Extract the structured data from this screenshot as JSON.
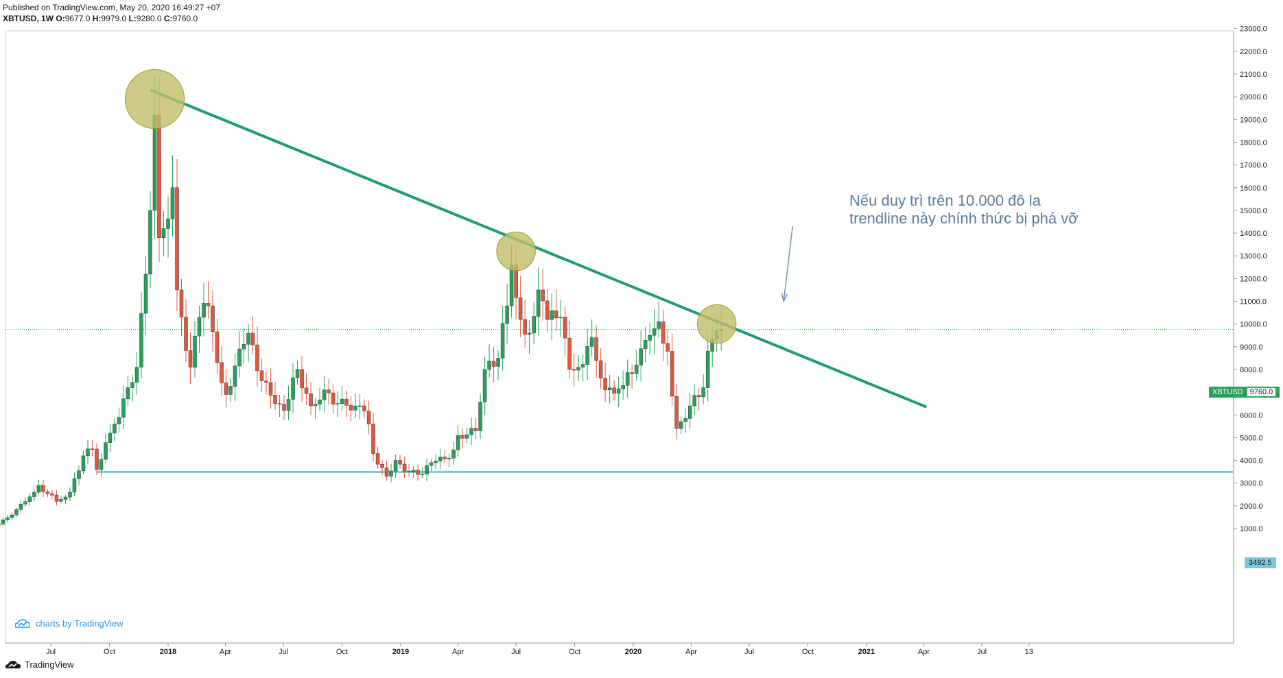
{
  "header": {
    "published": "Published on TradingView.com, May 20, 2020 16:49:27 +07",
    "symbol": "XBTUSD, 1W",
    "o_key": "O:",
    "o_val": "9677.0",
    "h_key": "H:",
    "h_val": "9979.0",
    "l_key": "L:",
    "l_val": "9280.0",
    "c_key": "C:",
    "c_val": "9760.0"
  },
  "annotation": {
    "line1": "Nếu duy trì trên 10.000 đô la",
    "line2": "trendline này chính thức bị phá vỡ"
  },
  "badges": {
    "last_symbol": "XBTUSD",
    "last_price": "9760.0",
    "support_level": "3492.5"
  },
  "watermark": "charts by TradingView",
  "footer": "TradingView",
  "colors": {
    "up": "#28a25a",
    "down": "#e0593c",
    "trendline": "#1f9a72",
    "support": "#7ec9d9",
    "highlight_fill": "#c2bd6a",
    "highlight_stroke": "#9c9a2a",
    "annotation": "#5b7a99",
    "arrow": "#6f8fb6"
  },
  "chart_data": {
    "type": "candlestick",
    "timeframe": "1W",
    "ylim": [
      0,
      23000
    ],
    "y_ticks": [
      1000,
      2000,
      3000,
      4000,
      5000,
      6000,
      7000,
      8000,
      9000,
      10000,
      11000,
      12000,
      13000,
      14000,
      15000,
      16000,
      17000,
      18000,
      19000,
      20000,
      21000,
      22000,
      23000
    ],
    "y_tick_labels": [
      "1000.0",
      "2000.0",
      "3000.0",
      "4000.0",
      "5000.0",
      "6000.0",
      "7000.0",
      "8000.0",
      "9000.0",
      "10000.0",
      "11000.0",
      "12000.0",
      "13000.0",
      "14000.0",
      "15000.0",
      "16000.0",
      "17000.0",
      "18000.0",
      "19000.0",
      "20000.0",
      "21000.0",
      "22000.0",
      "23000.0"
    ],
    "x_ticks": [
      {
        "label": "Jul",
        "date": "2017-07-01",
        "bold": false
      },
      {
        "label": "Oct",
        "date": "2017-10-01",
        "bold": false
      },
      {
        "label": "2018",
        "date": "2018-01-01",
        "bold": true
      },
      {
        "label": "Apr",
        "date": "2018-04-01",
        "bold": false
      },
      {
        "label": "Jul",
        "date": "2018-07-01",
        "bold": false
      },
      {
        "label": "Oct",
        "date": "2018-10-01",
        "bold": false
      },
      {
        "label": "2019",
        "date": "2019-01-01",
        "bold": true
      },
      {
        "label": "Apr",
        "date": "2019-04-01",
        "bold": false
      },
      {
        "label": "Jul",
        "date": "2019-07-01",
        "bold": false
      },
      {
        "label": "Oct",
        "date": "2019-10-01",
        "bold": false
      },
      {
        "label": "2020",
        "date": "2020-01-01",
        "bold": true
      },
      {
        "label": "Apr",
        "date": "2020-04-01",
        "bold": false
      },
      {
        "label": "Jul",
        "date": "2020-07-01",
        "bold": false
      },
      {
        "label": "Oct",
        "date": "2020-10-01",
        "bold": false
      },
      {
        "label": "2021",
        "date": "2021-01-01",
        "bold": true
      },
      {
        "label": "Apr",
        "date": "2021-04-01",
        "bold": false
      },
      {
        "label": "Jul",
        "date": "2021-07-01",
        "bold": false
      },
      {
        "label": "13",
        "date": "2021-09-13",
        "bold": false
      }
    ],
    "first_candle_week": "2017-04-10",
    "close_anchors": [
      [
        "2017-04-10",
        1200
      ],
      [
        "2017-05-01",
        1600
      ],
      [
        "2017-05-29",
        2400
      ],
      [
        "2017-06-12",
        2900
      ],
      [
        "2017-07-10",
        2200
      ],
      [
        "2017-07-31",
        2600
      ],
      [
        "2017-08-21",
        4200
      ],
      [
        "2017-09-04",
        4500
      ],
      [
        "2017-09-11",
        3600
      ],
      [
        "2017-10-09",
        5600
      ],
      [
        "2017-10-30",
        7200
      ],
      [
        "2017-11-13",
        8100
      ],
      [
        "2017-12-04",
        15000
      ],
      [
        "2017-12-11",
        19200
      ],
      [
        "2017-12-18",
        13800
      ],
      [
        "2017-12-25",
        14200
      ],
      [
        "2018-01-08",
        16000
      ],
      [
        "2018-01-15",
        11500
      ],
      [
        "2018-02-05",
        8100
      ],
      [
        "2018-02-19",
        10300
      ],
      [
        "2018-03-05",
        10800
      ],
      [
        "2018-03-19",
        8300
      ],
      [
        "2018-04-02",
        6900
      ],
      [
        "2018-04-23",
        8900
      ],
      [
        "2018-05-07",
        9600
      ],
      [
        "2018-05-28",
        7500
      ],
      [
        "2018-06-18",
        6500
      ],
      [
        "2018-07-02",
        6200
      ],
      [
        "2018-07-23",
        8000
      ],
      [
        "2018-08-13",
        6400
      ],
      [
        "2018-09-03",
        7100
      ],
      [
        "2018-09-24",
        6500
      ],
      [
        "2018-10-29",
        6400
      ],
      [
        "2018-11-12",
        5600
      ],
      [
        "2018-11-19",
        4300
      ],
      [
        "2018-12-10",
        3300
      ],
      [
        "2018-12-24",
        4000
      ],
      [
        "2019-01-14",
        3500
      ],
      [
        "2019-02-04",
        3400
      ],
      [
        "2019-02-18",
        3900
      ],
      [
        "2019-03-18",
        4100
      ],
      [
        "2019-04-01",
        5100
      ],
      [
        "2019-04-29",
        5300
      ],
      [
        "2019-05-13",
        8000
      ],
      [
        "2019-06-03",
        8500
      ],
      [
        "2019-06-17",
        10800
      ],
      [
        "2019-06-24",
        12600
      ],
      [
        "2019-07-08",
        10200
      ],
      [
        "2019-07-22",
        9600
      ],
      [
        "2019-08-05",
        11500
      ],
      [
        "2019-08-19",
        10200
      ],
      [
        "2019-09-09",
        10300
      ],
      [
        "2019-09-23",
        8000
      ],
      [
        "2019-10-07",
        8100
      ],
      [
        "2019-10-28",
        9400
      ],
      [
        "2019-11-18",
        7100
      ],
      [
        "2019-12-16",
        7300
      ],
      [
        "2020-01-06",
        8200
      ],
      [
        "2020-01-27",
        9500
      ],
      [
        "2020-02-10",
        10100
      ],
      [
        "2020-02-24",
        8800
      ],
      [
        "2020-03-09",
        5400
      ],
      [
        "2020-03-30",
        6400
      ],
      [
        "2020-04-20",
        7200
      ],
      [
        "2020-04-27",
        8800
      ],
      [
        "2020-05-11",
        9700
      ],
      [
        "2020-05-18",
        9760
      ]
    ],
    "trendline": {
      "from": {
        "date": "2017-12-04",
        "price": 20300
      },
      "to": {
        "date": "2021-04-05",
        "price": 6350
      }
    },
    "support_line": {
      "from": {
        "date": "2017-09-11",
        "price": 3492.5
      },
      "to": {
        "date": "2021-09-13",
        "price": 3492.5
      },
      "label": "3492.5"
    },
    "last_price_line": {
      "price": 9760
    },
    "highlights": [
      {
        "date": "2017-12-11",
        "price": 19900,
        "radius_price": 1300
      },
      {
        "date": "2019-07-01",
        "price": 13200,
        "radius_price": 850
      },
      {
        "date": "2020-05-11",
        "price": 10000,
        "radius_price": 850
      }
    ],
    "arrow": {
      "from": {
        "date": "2020-09-07",
        "price": 14300
      },
      "to": {
        "date": "2020-08-24",
        "price": 11000
      }
    }
  }
}
